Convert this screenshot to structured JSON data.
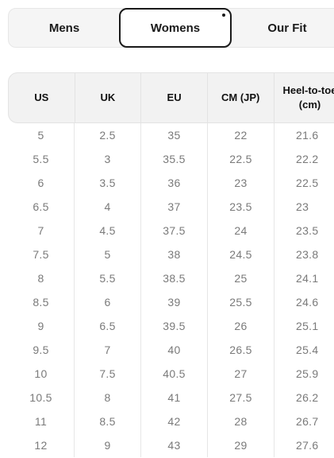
{
  "tabs": [
    {
      "label": "Mens"
    },
    {
      "label": "Womens"
    },
    {
      "label": "Our Fit"
    }
  ],
  "table": {
    "headers": [
      "US",
      "UK",
      "EU",
      "CM (JP)",
      "Heel-to-toe (cm)"
    ],
    "heel_header_line1": "Heel-to-toe",
    "heel_header_line2": "(cm)",
    "rows": [
      [
        "5",
        "2.5",
        "35",
        "22",
        "21.6"
      ],
      [
        "5.5",
        "3",
        "35.5",
        "22.5",
        "22.2"
      ],
      [
        "6",
        "3.5",
        "36",
        "23",
        "22.5"
      ],
      [
        "6.5",
        "4",
        "37",
        "23.5",
        "23"
      ],
      [
        "7",
        "4.5",
        "37.5",
        "24",
        "23.5"
      ],
      [
        "7.5",
        "5",
        "38",
        "24.5",
        "23.8"
      ],
      [
        "8",
        "5.5",
        "38.5",
        "25",
        "24.1"
      ],
      [
        "8.5",
        "6",
        "39",
        "25.5",
        "24.6"
      ],
      [
        "9",
        "6.5",
        "39.5",
        "26",
        "25.1"
      ],
      [
        "9.5",
        "7",
        "40",
        "26.5",
        "25.4"
      ],
      [
        "10",
        "7.5",
        "40.5",
        "27",
        "25.9"
      ],
      [
        "10.5",
        "8",
        "41",
        "27.5",
        "26.2"
      ],
      [
        "11",
        "8.5",
        "42",
        "28",
        "26.7"
      ],
      [
        "12",
        "9",
        "43",
        "29",
        "27.6"
      ]
    ]
  }
}
